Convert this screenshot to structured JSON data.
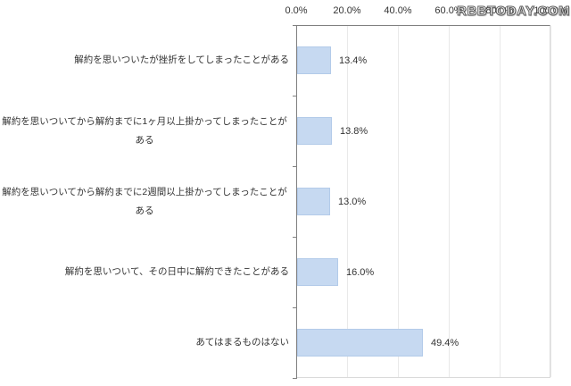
{
  "watermark": {
    "text": "RBBTODAY.COM"
  },
  "chart_data": {
    "type": "bar",
    "orientation": "horizontal",
    "title": "",
    "categories": [
      "解約を思いついたが挫折をしてしまったことがある",
      "解約を思いついてから解約までに1ヶ月以上掛かってしまったことがある",
      "解約を思いついてから解約までに2週間以上掛かってしまったことがある",
      "解約を思いついて、その日中に解約できたことがある",
      "あてはまるものはない"
    ],
    "values": [
      13.4,
      13.8,
      13.0,
      16.0,
      49.4
    ],
    "data_labels": [
      "13.4%",
      "13.8%",
      "13.0%",
      "16.0%",
      "49.4%"
    ],
    "x_axis": {
      "position": "top",
      "labels": [
        "0.0%",
        "20.0%",
        "40.0%",
        "60.0%",
        "80.0%",
        "100.0%"
      ],
      "min": 0,
      "max": 100,
      "step": 20
    },
    "grid": true,
    "legend": false
  },
  "colors": {
    "background": "#ffffff",
    "bar_fill": "#c6d9f1",
    "bar_border": "#b3cbe9",
    "axis_line": "#808080",
    "gridline": "#e9e9e9",
    "text": "#333333"
  }
}
